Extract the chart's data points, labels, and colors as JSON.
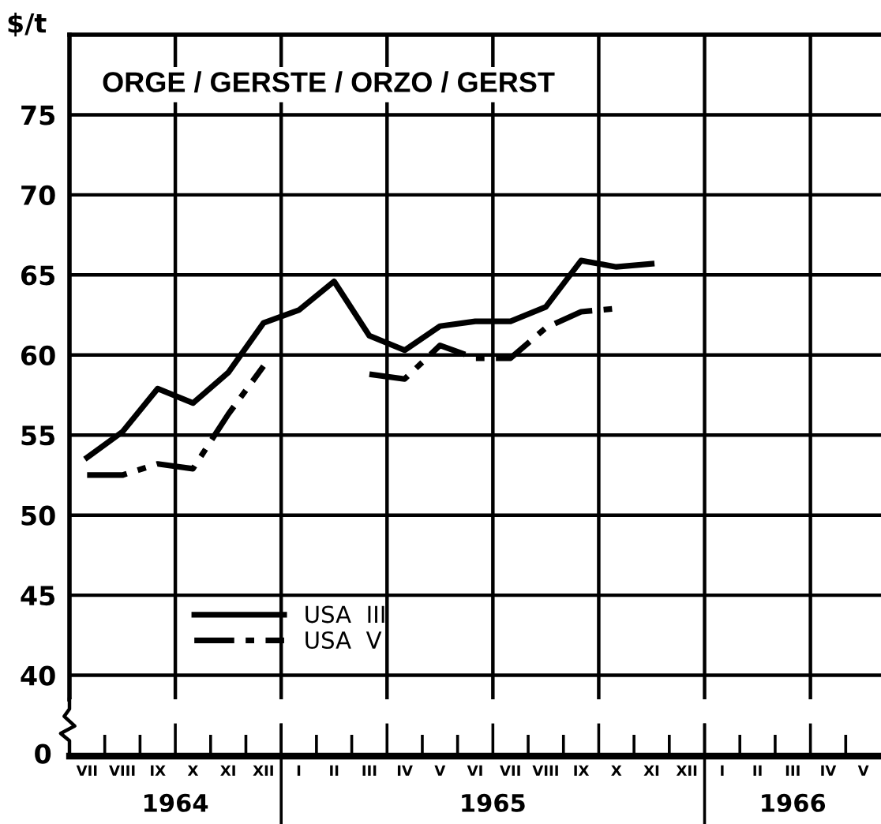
{
  "chart_data": {
    "type": "line",
    "title": "ORGE / GERSTE / ORZO / GERST",
    "ylabel": "$/t",
    "categories": [
      "VII",
      "VIII",
      "IX",
      "X",
      "XI",
      "XII",
      "I",
      "II",
      "III",
      "IV",
      "V",
      "VI",
      "VII",
      "VIII",
      "IX",
      "X",
      "XI",
      "XII",
      "I",
      "II",
      "III",
      "IV",
      "V"
    ],
    "series": [
      {
        "name": "USA  III",
        "color": "#000000",
        "line_style": "solid",
        "values": [
          53.6,
          55.2,
          57.9,
          57.0,
          58.9,
          62.0,
          62.8,
          64.6,
          61.2,
          60.3,
          61.8,
          62.1,
          62.1,
          63.0,
          65.9,
          65.5,
          65.7,
          null,
          null,
          null,
          null,
          null,
          null
        ]
      },
      {
        "name": "USA  V",
        "color": "#000000",
        "line_style": "dashdot",
        "values": [
          52.5,
          52.5,
          53.2,
          52.9,
          56.3,
          59.3,
          null,
          null,
          58.8,
          58.5,
          60.6,
          59.8,
          59.8,
          61.7,
          62.7,
          62.9,
          null,
          null,
          null,
          null,
          null,
          null,
          null
        ]
      }
    ],
    "ylim": [
      38.5,
      80
    ],
    "yticks": [
      40,
      45,
      50,
      55,
      60,
      65,
      70,
      75
    ],
    "grid": true,
    "legend": "bottom left",
    "marker": "none",
    "annotations": [
      "0",
      "1964",
      "1965",
      "1966"
    ]
  }
}
